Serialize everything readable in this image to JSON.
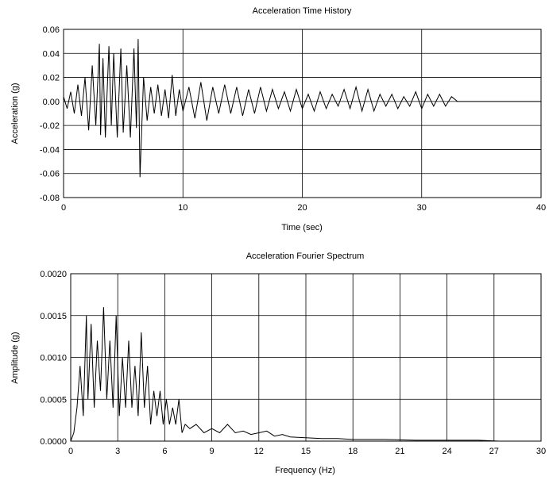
{
  "chart_data": [
    {
      "type": "line",
      "title": "Acceleration Time History",
      "xlabel": "Time (sec)",
      "ylabel": "Acceleration (g)",
      "xlim": [
        0,
        40
      ],
      "ylim": [
        -0.08,
        0.06
      ],
      "xticks": [
        0,
        10,
        20,
        30,
        40
      ],
      "xtick_labels": [
        "0",
        "10",
        "20",
        "30",
        "40"
      ],
      "yticks": [
        -0.08,
        -0.06,
        -0.04,
        -0.02,
        0.0,
        0.02,
        0.04,
        0.06
      ],
      "ytick_labels": [
        "-0.08",
        "-0.06",
        "-0.04",
        "-0.02",
        "0.00",
        "0.02",
        "0.04",
        "0.06"
      ],
      "grid": true,
      "series": [
        {
          "color": "#000000",
          "x": [
            0.0,
            0.3,
            0.6,
            0.9,
            1.2,
            1.5,
            1.8,
            2.1,
            2.4,
            2.7,
            3.0,
            3.1,
            3.3,
            3.5,
            3.8,
            4.0,
            4.2,
            4.5,
            4.8,
            5.0,
            5.3,
            5.6,
            5.9,
            6.1,
            6.25,
            6.4,
            6.7,
            7.0,
            7.3,
            7.6,
            7.9,
            8.2,
            8.5,
            8.8,
            9.1,
            9.4,
            9.7,
            10.0,
            10.5,
            11.0,
            11.5,
            12.0,
            12.5,
            13.0,
            13.5,
            14.0,
            14.5,
            15.0,
            15.5,
            16.0,
            16.5,
            17.0,
            17.5,
            18.0,
            18.5,
            19.0,
            19.5,
            20.0,
            20.5,
            21.0,
            21.5,
            22.0,
            22.5,
            23.0,
            23.5,
            24.0,
            24.5,
            25.0,
            25.5,
            26.0,
            26.5,
            27.0,
            27.5,
            28.0,
            28.5,
            29.0,
            29.5,
            30.0,
            30.5,
            31.0,
            31.5,
            32.0,
            32.5,
            33.0,
            40.0
          ],
          "y": [
            0.004,
            -0.006,
            0.008,
            -0.01,
            0.014,
            -0.012,
            0.02,
            -0.024,
            0.03,
            -0.02,
            0.048,
            -0.028,
            0.036,
            -0.03,
            0.046,
            -0.02,
            0.04,
            -0.03,
            0.044,
            -0.026,
            0.03,
            -0.03,
            0.044,
            -0.022,
            0.052,
            -0.063,
            0.02,
            -0.016,
            0.012,
            -0.01,
            0.014,
            -0.012,
            0.01,
            -0.014,
            0.022,
            -0.012,
            0.01,
            -0.008,
            0.012,
            -0.014,
            0.016,
            -0.016,
            0.012,
            -0.01,
            0.014,
            -0.01,
            0.012,
            -0.012,
            0.01,
            -0.01,
            0.012,
            -0.008,
            0.01,
            -0.006,
            0.008,
            -0.008,
            0.01,
            -0.006,
            0.006,
            -0.008,
            0.008,
            -0.006,
            0.006,
            -0.004,
            0.01,
            -0.006,
            0.012,
            -0.008,
            0.01,
            -0.008,
            0.006,
            -0.004,
            0.006,
            -0.006,
            0.004,
            -0.004,
            0.008,
            -0.006,
            0.006,
            -0.004,
            0.006,
            -0.004,
            0.004,
            0.0,
            0.0
          ]
        }
      ]
    },
    {
      "type": "line",
      "title": "Acceleration Fourier Spectrum",
      "xlabel": "Frequency (Hz)",
      "ylabel": "Amplitude (g)",
      "xlim": [
        0,
        30
      ],
      "ylim": [
        0,
        0.002
      ],
      "xticks": [
        0,
        3,
        6,
        9,
        12,
        15,
        18,
        21,
        24,
        27,
        30
      ],
      "xtick_labels": [
        "0",
        "3",
        "6",
        "9",
        "12",
        "15",
        "18",
        "21",
        "24",
        "27",
        "30"
      ],
      "yticks": [
        0.0,
        0.0005,
        0.001,
        0.0015,
        0.002
      ],
      "ytick_labels": [
        "0.0000",
        "0.0005",
        "0.0010",
        "0.0015",
        "0.0020"
      ],
      "grid": true,
      "series": [
        {
          "color": "#000000",
          "x": [
            0.0,
            0.2,
            0.4,
            0.6,
            0.8,
            1.0,
            1.1,
            1.3,
            1.5,
            1.7,
            1.9,
            2.1,
            2.3,
            2.5,
            2.7,
            2.9,
            3.1,
            3.3,
            3.5,
            3.7,
            3.9,
            4.1,
            4.3,
            4.5,
            4.7,
            4.9,
            5.1,
            5.3,
            5.5,
            5.7,
            5.9,
            6.1,
            6.3,
            6.5,
            6.7,
            6.9,
            7.1,
            7.3,
            7.6,
            8.0,
            8.5,
            9.0,
            9.5,
            10.0,
            10.5,
            11.0,
            11.5,
            12.0,
            12.5,
            13.0,
            13.5,
            14.0,
            15.0,
            16.0,
            17.0,
            18.0,
            20.0,
            22.0,
            24.0,
            26.0,
            27.3
          ],
          "y": [
            0.0,
            0.0001,
            0.0004,
            0.0009,
            0.0003,
            0.0015,
            0.0005,
            0.0014,
            0.0004,
            0.0012,
            0.0006,
            0.0016,
            0.0005,
            0.0012,
            0.0004,
            0.0015,
            0.0003,
            0.001,
            0.0004,
            0.0012,
            0.0004,
            0.0009,
            0.0003,
            0.0013,
            0.0004,
            0.0009,
            0.0002,
            0.0006,
            0.0003,
            0.0006,
            0.0002,
            0.0005,
            0.0002,
            0.0004,
            0.0002,
            0.0005,
            0.0001,
            0.0002,
            0.00015,
            0.0002,
            0.0001,
            0.00015,
            0.0001,
            0.0002,
            0.0001,
            0.00012,
            8e-05,
            0.0001,
            0.00012,
            6e-05,
            8e-05,
            5e-05,
            4e-05,
            3e-05,
            3e-05,
            2e-05,
            2e-05,
            1e-05,
            1e-05,
            1e-05,
            0.0
          ]
        }
      ]
    }
  ]
}
